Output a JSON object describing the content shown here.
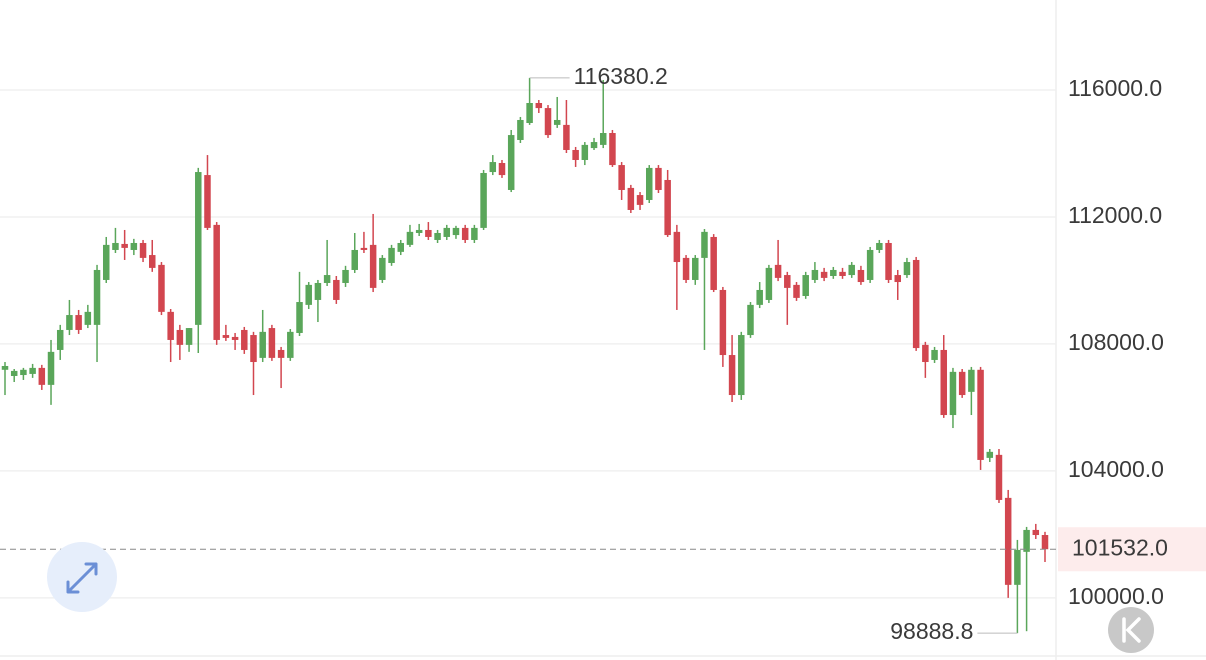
{
  "chart_data": {
    "type": "candlestick",
    "up_color": "#5aa65a",
    "down_color": "#d2464f",
    "grid": true,
    "ylim": [
      98200,
      118835
    ],
    "yticks": [
      {
        "value": 100000,
        "label": "100000.0"
      },
      {
        "value": 104000,
        "label": "104000.0"
      },
      {
        "value": 108000,
        "label": "108000.0"
      },
      {
        "value": 112000,
        "label": "112000.0"
      },
      {
        "value": 116000,
        "label": "116000.0"
      }
    ],
    "last_price": {
      "value": 101532,
      "label": "101532.0"
    },
    "high_index": 57,
    "low_index": 110,
    "candles": [
      [
        107185,
        107430,
        106390,
        107305
      ],
      [
        106990,
        107210,
        106800,
        107150
      ],
      [
        107020,
        107245,
        106865,
        107185
      ],
      [
        107055,
        107370,
        106930,
        107245
      ],
      [
        107245,
        107340,
        106550,
        106710
      ],
      [
        106710,
        108125,
        106080,
        107750
      ],
      [
        107810,
        108600,
        107495,
        108440
      ],
      [
        108440,
        109385,
        108280,
        108910
      ],
      [
        108910,
        109070,
        108315,
        108440
      ],
      [
        108600,
        109230,
        108500,
        109010
      ],
      [
        108600,
        110490,
        107430,
        110330
      ],
      [
        110015,
        111370,
        109920,
        111120
      ],
      [
        110960,
        111655,
        110865,
        111180
      ],
      [
        111150,
        111590,
        110645,
        111025
      ],
      [
        110960,
        111310,
        110800,
        111180
      ],
      [
        111180,
        111275,
        110580,
        110710
      ],
      [
        110800,
        111275,
        110270,
        110395
      ],
      [
        110490,
        110580,
        108910,
        109010
      ],
      [
        109010,
        109100,
        107430,
        108125
      ],
      [
        108440,
        108600,
        107495,
        107970
      ],
      [
        107970,
        108500,
        107750,
        108500
      ],
      [
        108600,
        113545,
        107715,
        113415
      ],
      [
        113320,
        113950,
        111590,
        111655
      ],
      [
        111750,
        111840,
        107970,
        108125
      ],
      [
        108280,
        108600,
        108095,
        108190
      ],
      [
        108220,
        108345,
        107810,
        108125
      ],
      [
        108440,
        108535,
        107685,
        107810
      ],
      [
        108280,
        108380,
        106390,
        107430
      ],
      [
        107560,
        109070,
        107430,
        108380
      ],
      [
        108500,
        108600,
        107465,
        107560
      ],
      [
        107810,
        107905,
        106610,
        107560
      ],
      [
        107560,
        108470,
        107465,
        108380
      ],
      [
        108345,
        110270,
        108250,
        109320
      ],
      [
        109230,
        109950,
        109100,
        109860
      ],
      [
        109385,
        110015,
        108690,
        109920
      ],
      [
        109920,
        111275,
        109825,
        110170
      ],
      [
        110015,
        110140,
        109260,
        109385
      ],
      [
        109920,
        110460,
        109795,
        110330
      ],
      [
        110330,
        111495,
        110235,
        110960
      ],
      [
        111025,
        111530,
        110865,
        110960
      ],
      [
        111120,
        112095,
        109635,
        109765
      ],
      [
        110015,
        110800,
        109920,
        110710
      ],
      [
        110550,
        111120,
        110460,
        111025
      ],
      [
        110900,
        111275,
        110800,
        111180
      ],
      [
        111120,
        111750,
        111055,
        111530
      ],
      [
        111495,
        111780,
        111400,
        111590
      ],
      [
        111590,
        111840,
        111275,
        111370
      ],
      [
        111275,
        111590,
        111180,
        111495
      ],
      [
        111370,
        111750,
        111275,
        111655
      ],
      [
        111430,
        111720,
        111310,
        111655
      ],
      [
        111655,
        111750,
        111180,
        111275
      ],
      [
        111275,
        111750,
        111180,
        111655
      ],
      [
        111655,
        113480,
        111590,
        113385
      ],
      [
        113415,
        113950,
        113320,
        113730
      ],
      [
        113700,
        113795,
        113230,
        113320
      ],
      [
        112850,
        114740,
        112785,
        114580
      ],
      [
        114425,
        115150,
        114330,
        115055
      ],
      [
        114960,
        116380.2,
        114900,
        115590
      ],
      [
        115590,
        115685,
        115275,
        115430
      ],
      [
        115430,
        115525,
        114490,
        114580
      ],
      [
        114900,
        115780,
        114805,
        115055
      ],
      [
        114900,
        115685,
        114015,
        114110
      ],
      [
        114110,
        114205,
        113575,
        113795
      ],
      [
        113795,
        114360,
        113635,
        114270
      ],
      [
        114170,
        114490,
        114110,
        114360
      ],
      [
        114270,
        116315,
        114170,
        114645
      ],
      [
        114645,
        114740,
        113575,
        113635
      ],
      [
        113635,
        113730,
        112535,
        112850
      ],
      [
        112915,
        113010,
        112125,
        112220
      ],
      [
        112690,
        112785,
        112220,
        112380
      ],
      [
        112535,
        113635,
        112440,
        113545
      ],
      [
        113545,
        113635,
        112755,
        112850
      ],
      [
        113165,
        113480,
        111370,
        111430
      ],
      [
        111530,
        111750,
        109070,
        110580
      ],
      [
        110710,
        110800,
        109920,
        110015
      ],
      [
        110015,
        110800,
        109860,
        110710
      ],
      [
        110710,
        111620,
        107810,
        111530
      ],
      [
        111370,
        111460,
        109635,
        109700
      ],
      [
        109700,
        109795,
        107275,
        107650
      ],
      [
        107650,
        108280,
        106170,
        106390
      ],
      [
        106390,
        108380,
        106235,
        108280
      ],
      [
        108280,
        109320,
        108190,
        109230
      ],
      [
        109230,
        109950,
        109130,
        109700
      ],
      [
        109385,
        110490,
        109290,
        110395
      ],
      [
        110490,
        111275,
        109980,
        110080
      ],
      [
        110170,
        110270,
        108600,
        109765
      ],
      [
        109860,
        109950,
        109355,
        109450
      ],
      [
        109510,
        110270,
        109420,
        110170
      ],
      [
        110015,
        110580,
        109920,
        110330
      ],
      [
        110270,
        110395,
        109980,
        110080
      ],
      [
        110140,
        110425,
        110050,
        110330
      ],
      [
        110270,
        110395,
        110050,
        110140
      ],
      [
        110170,
        110580,
        110080,
        110490
      ],
      [
        110330,
        110460,
        109860,
        109950
      ],
      [
        110015,
        111055,
        109920,
        110960
      ],
      [
        110960,
        111275,
        110865,
        111180
      ],
      [
        111180,
        111275,
        109920,
        110015
      ],
      [
        110170,
        110330,
        109385,
        109950
      ],
      [
        110170,
        110710,
        110080,
        110580
      ],
      [
        110645,
        110740,
        107780,
        107870
      ],
      [
        107970,
        108065,
        106930,
        107430
      ],
      [
        107495,
        107905,
        107400,
        107810
      ],
      [
        107810,
        108280,
        105670,
        105760
      ],
      [
        105760,
        107245,
        105350,
        107120
      ],
      [
        107120,
        107210,
        106300,
        106390
      ],
      [
        106490,
        107275,
        105760,
        107185
      ],
      [
        107185,
        107275,
        104030,
        104345
      ],
      [
        104410,
        104690,
        104280,
        104600
      ],
      [
        104505,
        104690,
        102990,
        103085
      ],
      [
        103150,
        103400,
        100000,
        100410
      ],
      [
        100410,
        101825,
        98888.8,
        101510
      ],
      [
        101450,
        102235,
        98950,
        102140
      ],
      [
        102140,
        102330,
        101855,
        101980
      ],
      [
        101980,
        102080,
        101130,
        101532
      ]
    ]
  }
}
